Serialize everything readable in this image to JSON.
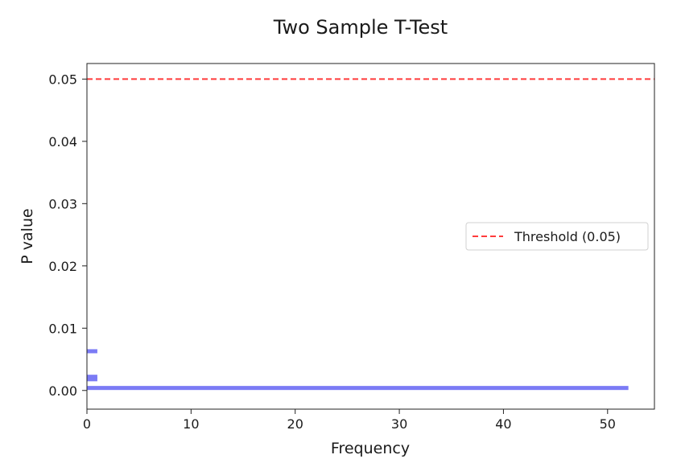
{
  "chart_data": {
    "type": "bar",
    "title": "Two Sample T-Test",
    "xlabel": "Frequency",
    "ylabel": "P value",
    "xlim": [
      0,
      54.5
    ],
    "ylim": [
      -0.003,
      0.0525
    ],
    "x_ticks": [
      0,
      10,
      20,
      30,
      40,
      50
    ],
    "y_ticks": [
      0.0,
      0.01,
      0.02,
      0.03,
      0.04,
      0.05
    ],
    "x_tick_labels": [
      "0",
      "10",
      "20",
      "30",
      "40",
      "50"
    ],
    "y_tick_labels": [
      "0.00",
      "0.01",
      "0.02",
      "0.03",
      "0.04",
      "0.05"
    ],
    "orientation": "horizontal",
    "series": [
      {
        "color": "#7b7bf5",
        "bars": [
          {
            "p_value": 0.0004,
            "frequency": 52
          },
          {
            "p_value": 0.0018,
            "frequency": 1
          },
          {
            "p_value": 0.0022,
            "frequency": 1
          },
          {
            "p_value": 0.0063,
            "frequency": 1
          }
        ]
      }
    ],
    "threshold": {
      "value": 0.05,
      "label": "Threshold (0.05)",
      "color": "#ff3b3b",
      "style": "dashed"
    },
    "legend": {
      "placement": "center-right",
      "entries": [
        "Threshold (0.05)"
      ]
    },
    "grid": false
  }
}
